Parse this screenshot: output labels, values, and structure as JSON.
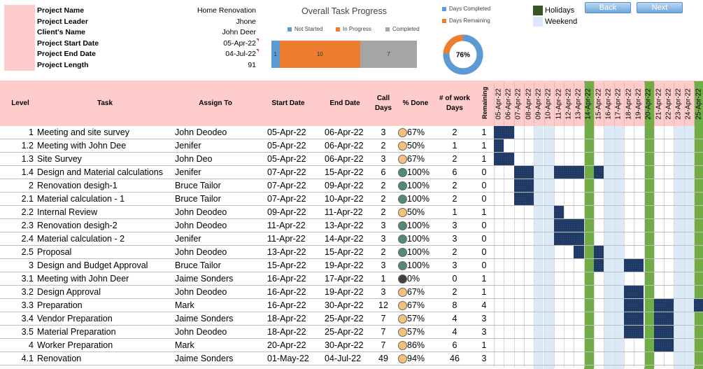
{
  "project": {
    "fields": [
      {
        "label": "Project Name",
        "value": "Home Renovation"
      },
      {
        "label": "Project Leader",
        "value": "Jhone"
      },
      {
        "label": "Client's Name",
        "value": "John Deer"
      },
      {
        "label": "Project Start Date",
        "value": "05-Apr-22"
      },
      {
        "label": "Project End Date",
        "value": "04-Jul-22"
      },
      {
        "label": "Project Length",
        "value": "91"
      }
    ]
  },
  "progress_chart": {
    "title": "Overall Task Progress",
    "legend": [
      "Not Started",
      "In Progress",
      "Completed"
    ],
    "values": [
      1,
      10,
      7
    ],
    "colors": [
      "#5b9bd5",
      "#ed7d31",
      "#a5a5a5"
    ]
  },
  "donut": {
    "legend": [
      "Days Completed",
      "Days Remaining"
    ],
    "colors": [
      "#5b9bd5",
      "#ed7d31"
    ],
    "percent": 76,
    "label": "76%"
  },
  "legend_key": {
    "holidays": "Holidays",
    "weekend": "Weekend",
    "holiday_color": "#375623",
    "weekend_color": "#dce9f7"
  },
  "nav": {
    "back": "Back",
    "next": "Next"
  },
  "columns": {
    "level": "Level",
    "task": "Task",
    "assign": "Assign To",
    "start": "Start Date",
    "end": "End Date",
    "call": "Call Days",
    "done": "% Done",
    "work": "# of work Days",
    "remaining": "Remaining"
  },
  "dates": [
    "05-Apr-22",
    "06-Apr-22",
    "07-Apr-22",
    "08-Apr-22",
    "09-Apr-22",
    "10-Apr-22",
    "11-Apr-22",
    "12-Apr-22",
    "13-Apr-22",
    "14-Apr-22",
    "15-Apr-22",
    "16-Apr-22",
    "17-Apr-22",
    "18-Apr-22",
    "19-Apr-22",
    "20-Apr-22",
    "21-Apr-22",
    "22-Apr-22",
    "23-Apr-22",
    "24-Apr-22",
    "25-Apr-22"
  ],
  "holiday_cols": [
    9,
    15,
    20
  ],
  "weekend_cols": [
    4,
    5,
    11,
    12,
    18,
    19
  ],
  "tasks": [
    {
      "level": "1",
      "task": "Meeting and site survey",
      "assign": "John Deodeo",
      "start": "05-Apr-22",
      "end": "06-Apr-22",
      "call": "3",
      "pct": 67,
      "pct_label": "67%",
      "work": "2",
      "rem": "1",
      "bars": [
        [
          0,
          1
        ]
      ]
    },
    {
      "level": "1.2",
      "task": "Meeting with John Dee",
      "assign": "Jenifer",
      "start": "05-Apr-22",
      "end": "06-Apr-22",
      "call": "2",
      "pct": 50,
      "pct_label": "50%",
      "work": "1",
      "rem": "1",
      "bars": [
        [
          0,
          0
        ]
      ]
    },
    {
      "level": "1.3",
      "task": "Site Survey",
      "assign": "John Deo",
      "start": "05-Apr-22",
      "end": "06-Apr-22",
      "call": "3",
      "pct": 67,
      "pct_label": "67%",
      "work": "2",
      "rem": "1",
      "bars": [
        [
          0,
          1
        ]
      ]
    },
    {
      "level": "1.4",
      "task": "Design and Material calculations",
      "assign": "Jenifer",
      "start": "07-Apr-22",
      "end": "15-Apr-22",
      "call": "6",
      "pct": 100,
      "pct_label": "100%",
      "work": "6",
      "rem": "0",
      "bars": [
        [
          2,
          3
        ],
        [
          6,
          8
        ],
        [
          10,
          10
        ]
      ]
    },
    {
      "level": "2",
      "task": "Renovation desigh-1",
      "assign": "Bruce Tailor",
      "start": "07-Apr-22",
      "end": "09-Apr-22",
      "call": "2",
      "pct": 100,
      "pct_label": "100%",
      "work": "2",
      "rem": "0",
      "bars": [
        [
          2,
          3
        ]
      ]
    },
    {
      "level": "2.1",
      "task": "Material calculation - 1",
      "assign": "Bruce Tailor",
      "start": "07-Apr-22",
      "end": "10-Apr-22",
      "call": "2",
      "pct": 100,
      "pct_label": "100%",
      "work": "2",
      "rem": "0",
      "bars": [
        [
          2,
          3
        ]
      ]
    },
    {
      "level": "2.2",
      "task": "Internal Review",
      "assign": "John Deodeo",
      "start": "09-Apr-22",
      "end": "11-Apr-22",
      "call": "2",
      "pct": 50,
      "pct_label": "50%",
      "work": "1",
      "rem": "1",
      "bars": [
        [
          6,
          6
        ]
      ]
    },
    {
      "level": "2.3",
      "task": "Renovation desigh-2",
      "assign": "John Deodeo",
      "start": "11-Apr-22",
      "end": "13-Apr-22",
      "call": "3",
      "pct": 100,
      "pct_label": "100%",
      "work": "3",
      "rem": "0",
      "bars": [
        [
          6,
          8
        ]
      ]
    },
    {
      "level": "2.4",
      "task": "Material calculation - 2",
      "assign": "Jenifer",
      "start": "11-Apr-22",
      "end": "14-Apr-22",
      "call": "3",
      "pct": 100,
      "pct_label": "100%",
      "work": "3",
      "rem": "0",
      "bars": [
        [
          6,
          8
        ]
      ]
    },
    {
      "level": "2.5",
      "task": "Proposal",
      "assign": "John Deodeo",
      "start": "13-Apr-22",
      "end": "15-Apr-22",
      "call": "2",
      "pct": 100,
      "pct_label": "100%",
      "work": "2",
      "rem": "0",
      "bars": [
        [
          8,
          8
        ],
        [
          10,
          10
        ]
      ]
    },
    {
      "level": "3",
      "task": "Design and Budget Approval",
      "assign": "Bruce Tailor",
      "start": "15-Apr-22",
      "end": "19-Apr-22",
      "call": "3",
      "pct": 100,
      "pct_label": "100%",
      "work": "3",
      "rem": "0",
      "bars": [
        [
          10,
          10
        ],
        [
          13,
          14
        ]
      ]
    },
    {
      "level": "3.1",
      "task": "Meeting with John Deer",
      "assign": "Jaime Sonders",
      "start": "16-Apr-22",
      "end": "17-Apr-22",
      "call": "1",
      "pct": 0,
      "pct_label": "0%",
      "work": "0",
      "rem": "1",
      "bars": []
    },
    {
      "level": "3.2",
      "task": "Design Approval",
      "assign": "John Deodeo",
      "start": "16-Apr-22",
      "end": "19-Apr-22",
      "call": "3",
      "pct": 67,
      "pct_label": "67%",
      "work": "2",
      "rem": "1",
      "bars": [
        [
          13,
          14
        ]
      ]
    },
    {
      "level": "3.3",
      "task": "Preparation",
      "assign": "Mark",
      "start": "16-Apr-22",
      "end": "30-Apr-22",
      "call": "12",
      "pct": 67,
      "pct_label": "67%",
      "work": "8",
      "rem": "4",
      "bars": [
        [
          13,
          14
        ],
        [
          16,
          17
        ],
        [
          20,
          20
        ]
      ]
    },
    {
      "level": "3.4",
      "task": "Vendor Preparation",
      "assign": "Jaime Sonders",
      "start": "18-Apr-22",
      "end": "25-Apr-22",
      "call": "7",
      "pct": 57,
      "pct_label": "57%",
      "work": "4",
      "rem": "3",
      "bars": [
        [
          13,
          14
        ],
        [
          16,
          17
        ]
      ]
    },
    {
      "level": "3.5",
      "task": "Material Preparation",
      "assign": "John Deodeo",
      "start": "18-Apr-22",
      "end": "25-Apr-22",
      "call": "7",
      "pct": 57,
      "pct_label": "57%",
      "work": "4",
      "rem": "3",
      "bars": [
        [
          13,
          14
        ],
        [
          16,
          17
        ]
      ]
    },
    {
      "level": "4",
      "task": "Worker Preparation",
      "assign": "Mark",
      "start": "20-Apr-22",
      "end": "30-Apr-22",
      "call": "7",
      "pct": 86,
      "pct_label": "86%",
      "work": "6",
      "rem": "1",
      "bars": [
        [
          16,
          17
        ]
      ]
    },
    {
      "level": "4.1",
      "task": "Renovation",
      "assign": "Jaime Sonders",
      "start": "01-May-22",
      "end": "04-Jul-22",
      "call": "49",
      "pct": 94,
      "pct_label": "94%",
      "work": "46",
      "rem": "3",
      "bars": []
    }
  ]
}
